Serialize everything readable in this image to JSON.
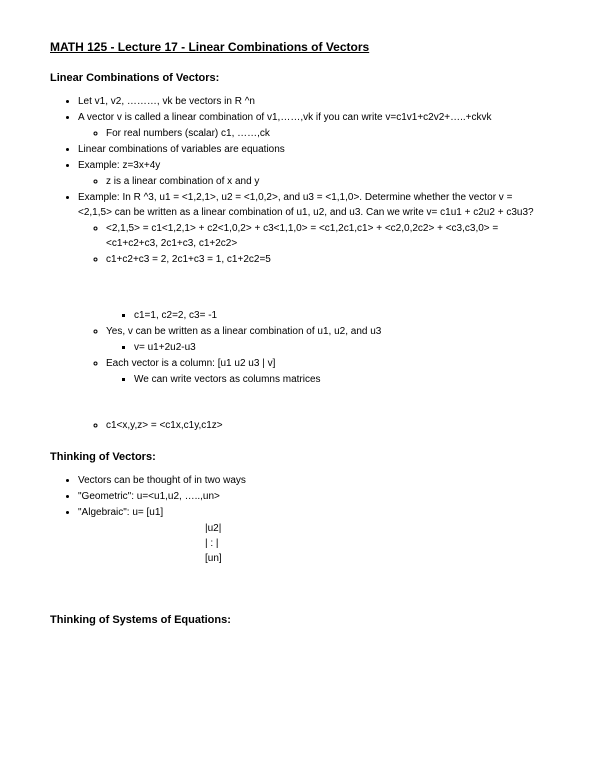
{
  "title": "MATH 125 - Lecture 17 - Linear Combinations of Vectors",
  "section1": {
    "header": "Linear Combinations of Vectors:",
    "b1": "Let v1, v2, ………, vk be vectors in R ^n",
    "b2": "A vector v is called a linear combination of v1,……,vk if you can write v=c1v1+c2v2+…..+ckvk",
    "b2a": "For real numbers (scalar) c1, ……,ck",
    "b3": "Linear combinations of variables are equations",
    "b4": "Example: z=3x+4y",
    "b4a": "z is a linear combination of x and y",
    "b5": "Example: In R ^3, u1 = <1,2,1>, u2 = <1,0,2>, and u3 = <1,1,0>. Determine whether the vector v = <2,1,5> can be  written as a linear combination of u1, u2, and u3. Can we write v= c1u1 + c2u2 + c3u3?",
    "b5a": "<2,1,5> = c1<1,2,1> + c2<1,0,2> + c3<1,1,0> = <c1,2c1,c1> + <c2,0,2c2> + <c3,c3,0> = <c1+c2+c3, 2c1+c3, c1+2c2>",
    "b5b": "c1+c2+c3 = 2,  2c1+c3 = 1, c1+2c2=5",
    "b5c": "c1=1, c2=2, c3= -1",
    "b5d": "Yes, v can be written as a linear combination of u1, u2, and u3",
    "b5d1": "v= u1+2u2-u3",
    "b5e": "Each vector is a column: [u1 u2 u3 | v]",
    "b5e1": "We can write vectors as columns matrices",
    "b5f": "c1<x,y,z> = <c1x,c1y,c1z>"
  },
  "section2": {
    "header": "Thinking of Vectors:",
    "b1": "Vectors can be thought of in two ways",
    "b2": "\"Geometric\": u=<u1,u2, …..,un>",
    "b3": "\"Algebraic\": u= [u1]",
    "m1": "|u2|",
    "m2": "|  :  |",
    "m3": "[un]"
  },
  "section3": {
    "header": "Thinking of Systems of Equations:"
  }
}
